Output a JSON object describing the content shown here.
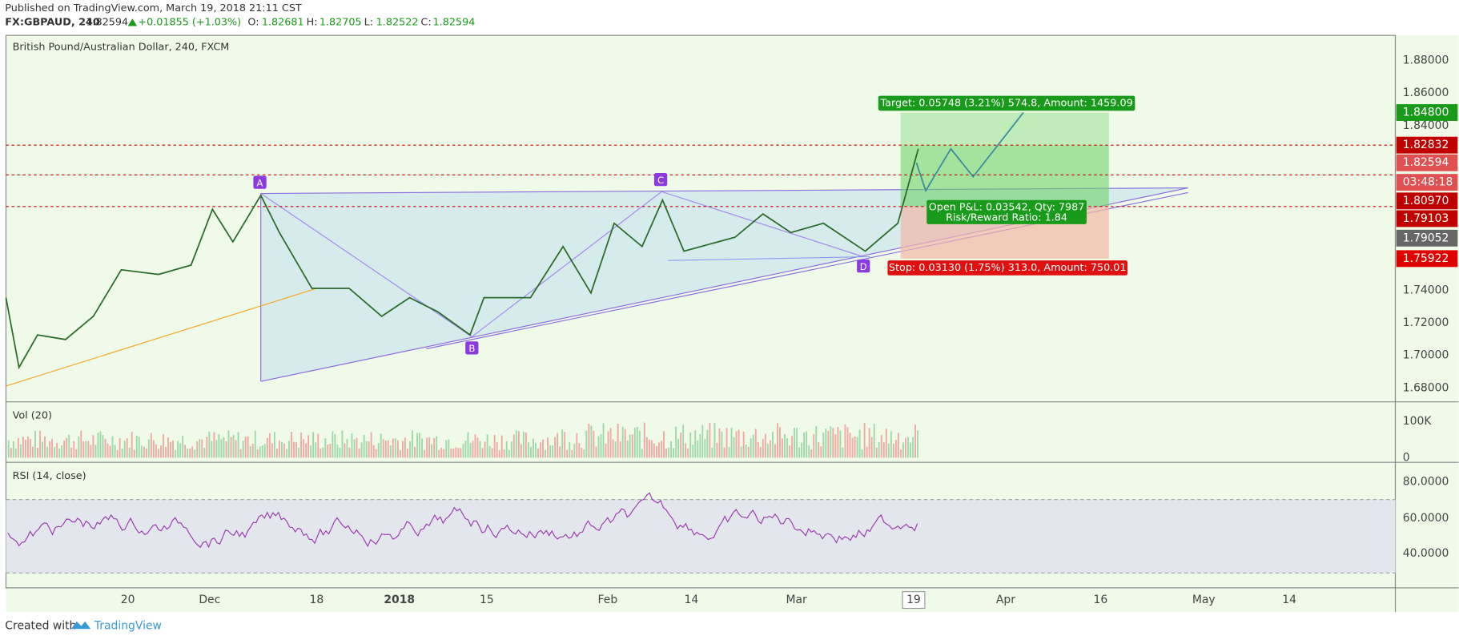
{
  "header": {
    "published": "Published on TradingView.com, March 19, 2018 21:11 CST",
    "symbol": "FX:GBPAUD, 240",
    "last": "1.82594",
    "change": "+0.01855 (+1.03%)",
    "open_label": "O:",
    "open": "1.82681",
    "high_label": "H:",
    "high": "1.82705",
    "low_label": "L:",
    "low": "1.82522",
    "close_label": "C:",
    "close": "1.82594"
  },
  "chart": {
    "title": "British Pound/Australian Dollar, 240, FXCM",
    "price_axis": [
      "1.88000",
      "1.86000",
      "1.84000",
      "1.74000",
      "1.72000",
      "1.70000",
      "1.68000"
    ],
    "badges": [
      "1.84800",
      "1.82832",
      "1.82594",
      "03:48:18",
      "1.80970",
      "1.79103",
      "1.79052",
      "1.75922"
    ],
    "points": [
      "A",
      "B",
      "C",
      "D"
    ],
    "target": "Target: 0.05748 (3.21%) 574.8, Amount: 1459.09",
    "pnl": "Open P&L: 0.03542, Qty: 7987",
    "ratio": "Risk/Reward Ratio: 1.84",
    "stop": "Stop: 0.03130 (1.75%) 313.0, Amount: 750.01"
  },
  "volume": {
    "title": "Vol (20)",
    "axis": [
      "100K",
      "0"
    ]
  },
  "rsi": {
    "title": "RSI (14, close)",
    "axis": [
      "80.0000",
      "60.0000",
      "40.0000"
    ]
  },
  "dates": [
    "20",
    "Dec",
    "18",
    "2018",
    "15",
    "Feb",
    "14",
    "Mar",
    "19",
    "Apr",
    "16",
    "May",
    "14"
  ],
  "footer": {
    "created": "Created with",
    "brand": "TradingView"
  }
}
